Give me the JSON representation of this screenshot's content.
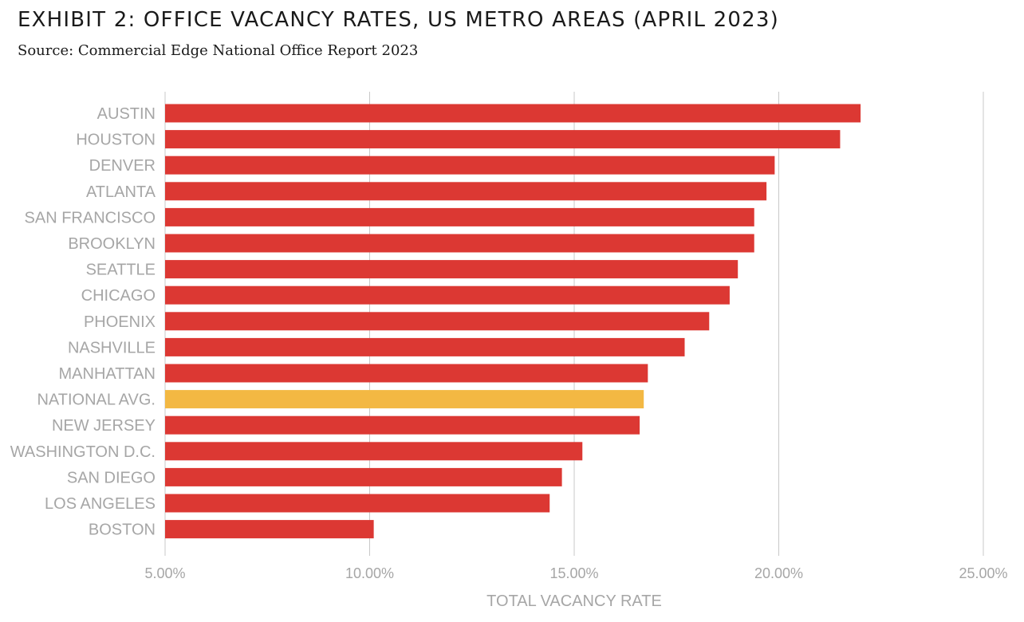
{
  "header": {
    "title": "EXHIBIT 2: OFFICE VACANCY RATES, US METRO AREAS (APRIL 2023)",
    "subtitle": "Source: Commercial Edge National Office Report 2023"
  },
  "colors": {
    "bar": "#dc3833",
    "highlight": "#f3b843",
    "grid": "#c8c8c8",
    "label": "#a6a6a6"
  },
  "chart_data": {
    "type": "bar",
    "orientation": "horizontal",
    "title": "EXHIBIT 2: OFFICE VACANCY RATES, US METRO AREAS (APRIL 2023)",
    "subtitle": "Source: Commercial Edge National Office Report 2023",
    "categories": [
      "AUSTIN",
      "HOUSTON",
      "DENVER",
      "ATLANTA",
      "SAN FRANCISCO",
      "BROOKLYN",
      "SEATTLE",
      "CHICAGO",
      "PHOENIX",
      "NASHVILLE",
      "MANHATTAN",
      "NATIONAL AVG.",
      "NEW JERSEY",
      "WASHINGTON D.C.",
      "SAN DIEGO",
      "LOS ANGELES",
      "BOSTON"
    ],
    "values": [
      22.0,
      21.5,
      19.9,
      19.7,
      19.4,
      19.4,
      19.0,
      18.8,
      18.3,
      17.7,
      16.8,
      16.7,
      16.6,
      15.2,
      14.7,
      14.4,
      10.1
    ],
    "highlight_category": "NATIONAL AVG.",
    "xlabel": "TOTAL VACANCY RATE",
    "ylabel": "",
    "xlim": [
      5,
      25
    ],
    "xticks": [
      5,
      10,
      15,
      20,
      25
    ],
    "xtick_labels": [
      "5.00%",
      "10.00%",
      "15.00%",
      "20.00%",
      "25.00%"
    ],
    "grid": true
  }
}
